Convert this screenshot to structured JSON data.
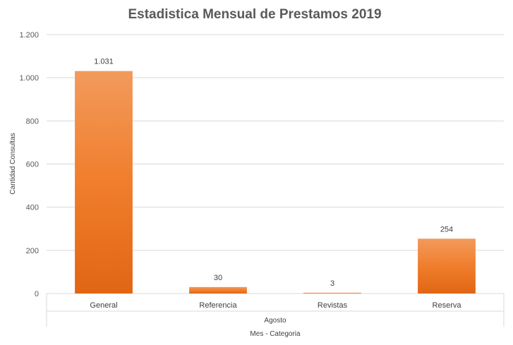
{
  "chart_data": {
    "type": "bar",
    "title": "Estadistica Mensual de Prestamos 2019",
    "ylabel": "Cantidad Consultas",
    "xlabel": "Mes - Categoria",
    "group_label": "Agosto",
    "categories": [
      "General",
      "Referencia",
      "Revistas",
      "Reserva"
    ],
    "values": [
      1031,
      30,
      3,
      254
    ],
    "value_labels": [
      "1.031",
      "30",
      "3",
      "254"
    ],
    "ylim": [
      0,
      1200
    ],
    "yticks": [
      0,
      200,
      400,
      600,
      800,
      1000,
      1200
    ],
    "ytick_labels": [
      "0",
      "200",
      "400",
      "600",
      "800",
      "1.000",
      "1.200"
    ],
    "grid": true,
    "legend": "none",
    "colors": {
      "bar_top": "#f29a5c",
      "bar_mid": "#f07e2c",
      "bar_bottom": "#e06614",
      "grid": "#d9d9d9",
      "text": "#595959"
    }
  }
}
